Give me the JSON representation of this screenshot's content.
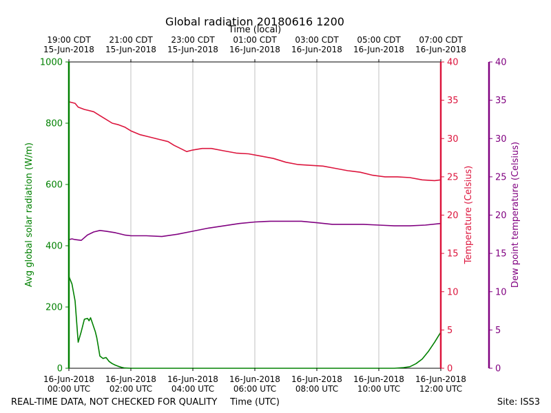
{
  "chart_data": {
    "type": "line",
    "title": "Global radiation 20180616 1200",
    "xlabel_bottom": "Time (UTC)",
    "xlabel_top": "Time (local)",
    "ylabel_left": "Avg global solar radiation (W/m)",
    "ylabel_right": "Temperature (Celsius)",
    "ylabel_far_right": "Dew point temperature (Celsius)",
    "footer_left": "REAL-TIME DATA, NOT CHECKED FOR QUALITY",
    "footer_right": "Site: ISS3",
    "grid": "vertical",
    "xlim_hours_utc": [
      0,
      12
    ],
    "ylim_left": [
      0,
      1000
    ],
    "ylim_right": [
      0,
      40
    ],
    "ylim_far_right": [
      0,
      40
    ],
    "yticks_left": [
      0,
      200,
      400,
      600,
      800,
      1000
    ],
    "yticks_right": [
      0,
      5,
      10,
      15,
      20,
      25,
      30,
      35,
      40
    ],
    "yticks_far_right": [
      0,
      5,
      10,
      15,
      20,
      25,
      30,
      35,
      40
    ],
    "bottom_ticks": [
      {
        "hour": 0,
        "date": "16-Jun-2018",
        "time": "00:00 UTC"
      },
      {
        "hour": 2,
        "date": "16-Jun-2018",
        "time": "02:00 UTC"
      },
      {
        "hour": 4,
        "date": "16-Jun-2018",
        "time": "04:00 UTC"
      },
      {
        "hour": 6,
        "date": "16-Jun-2018",
        "time": "06:00 UTC"
      },
      {
        "hour": 8,
        "date": "16-Jun-2018",
        "time": "08:00 UTC"
      },
      {
        "hour": 10,
        "date": "16-Jun-2018",
        "time": "10:00 UTC"
      },
      {
        "hour": 12,
        "date": "16-Jun-2018",
        "time": "12:00 UTC"
      }
    ],
    "top_ticks": [
      {
        "hour": 0,
        "time": "19:00 CDT",
        "date": "15-Jun-2018"
      },
      {
        "hour": 2,
        "time": "21:00 CDT",
        "date": "15-Jun-2018"
      },
      {
        "hour": 4,
        "time": "23:00 CDT",
        "date": "15-Jun-2018"
      },
      {
        "hour": 6,
        "time": "01:00 CDT",
        "date": "16-Jun-2018"
      },
      {
        "hour": 8,
        "time": "03:00 CDT",
        "date": "16-Jun-2018"
      },
      {
        "hour": 10,
        "time": "05:00 CDT",
        "date": "16-Jun-2018"
      },
      {
        "hour": 12,
        "time": "07:00 CDT",
        "date": "16-Jun-2018"
      }
    ],
    "series": [
      {
        "axis": "left",
        "color": "#008000",
        "x": [
          0,
          0.1,
          0.2,
          0.3,
          0.4,
          0.5,
          0.6,
          0.65,
          0.7,
          0.75,
          0.8,
          0.85,
          0.9,
          0.95,
          1.0,
          1.1,
          1.2,
          1.3,
          1.4,
          1.5,
          1.55,
          1.6,
          1.7,
          1.8,
          2.0,
          2.2,
          2.5,
          3,
          4,
          5,
          6,
          7,
          8,
          9,
          10,
          10.5,
          10.8,
          11.0,
          11.2,
          11.4,
          11.6,
          11.8,
          12.0
        ],
        "values": [
          300,
          275,
          220,
          85,
          120,
          160,
          163,
          155,
          165,
          150,
          135,
          120,
          100,
          70,
          40,
          32,
          35,
          22,
          15,
          10,
          8,
          6,
          3,
          1,
          0,
          0,
          0,
          0,
          0,
          0,
          0,
          0,
          0,
          0,
          0,
          0,
          2,
          5,
          15,
          30,
          55,
          85,
          118
        ]
      },
      {
        "axis": "right",
        "color": "#dc143c",
        "x": [
          0,
          0.2,
          0.3,
          0.5,
          0.8,
          1.0,
          1.2,
          1.4,
          1.6,
          1.8,
          2.0,
          2.3,
          2.6,
          2.9,
          3.2,
          3.4,
          3.6,
          3.8,
          4.0,
          4.3,
          4.6,
          5.0,
          5.4,
          5.8,
          6.2,
          6.6,
          7.0,
          7.4,
          7.8,
          8.2,
          8.6,
          9.0,
          9.4,
          9.8,
          10.2,
          10.6,
          11.0,
          11.4,
          11.8,
          12.0
        ],
        "values": [
          34.8,
          34.6,
          34.1,
          33.8,
          33.5,
          33.0,
          32.5,
          32.0,
          31.8,
          31.5,
          31.0,
          30.5,
          30.2,
          29.9,
          29.6,
          29.1,
          28.7,
          28.3,
          28.5,
          28.7,
          28.7,
          28.4,
          28.1,
          28.0,
          27.7,
          27.4,
          26.9,
          26.6,
          26.5,
          26.4,
          26.1,
          25.8,
          25.6,
          25.2,
          25.0,
          25.0,
          24.9,
          24.6,
          24.5,
          24.6
        ]
      },
      {
        "axis": "far_right",
        "color": "#800080",
        "x": [
          0,
          0.1,
          0.2,
          0.4,
          0.6,
          0.8,
          1.0,
          1.2,
          1.5,
          1.8,
          2.0,
          2.5,
          3.0,
          3.5,
          4.0,
          4.5,
          5.0,
          5.5,
          6.0,
          6.5,
          7.0,
          7.5,
          8.0,
          8.5,
          9.0,
          9.5,
          10.0,
          10.5,
          11.0,
          11.5,
          12.0
        ],
        "values": [
          16.8,
          16.9,
          16.8,
          16.7,
          17.4,
          17.8,
          18.0,
          17.9,
          17.7,
          17.4,
          17.3,
          17.3,
          17.2,
          17.5,
          17.9,
          18.3,
          18.6,
          18.9,
          19.1,
          19.2,
          19.2,
          19.2,
          19.0,
          18.8,
          18.8,
          18.8,
          18.7,
          18.6,
          18.6,
          18.7,
          18.9
        ]
      }
    ]
  }
}
